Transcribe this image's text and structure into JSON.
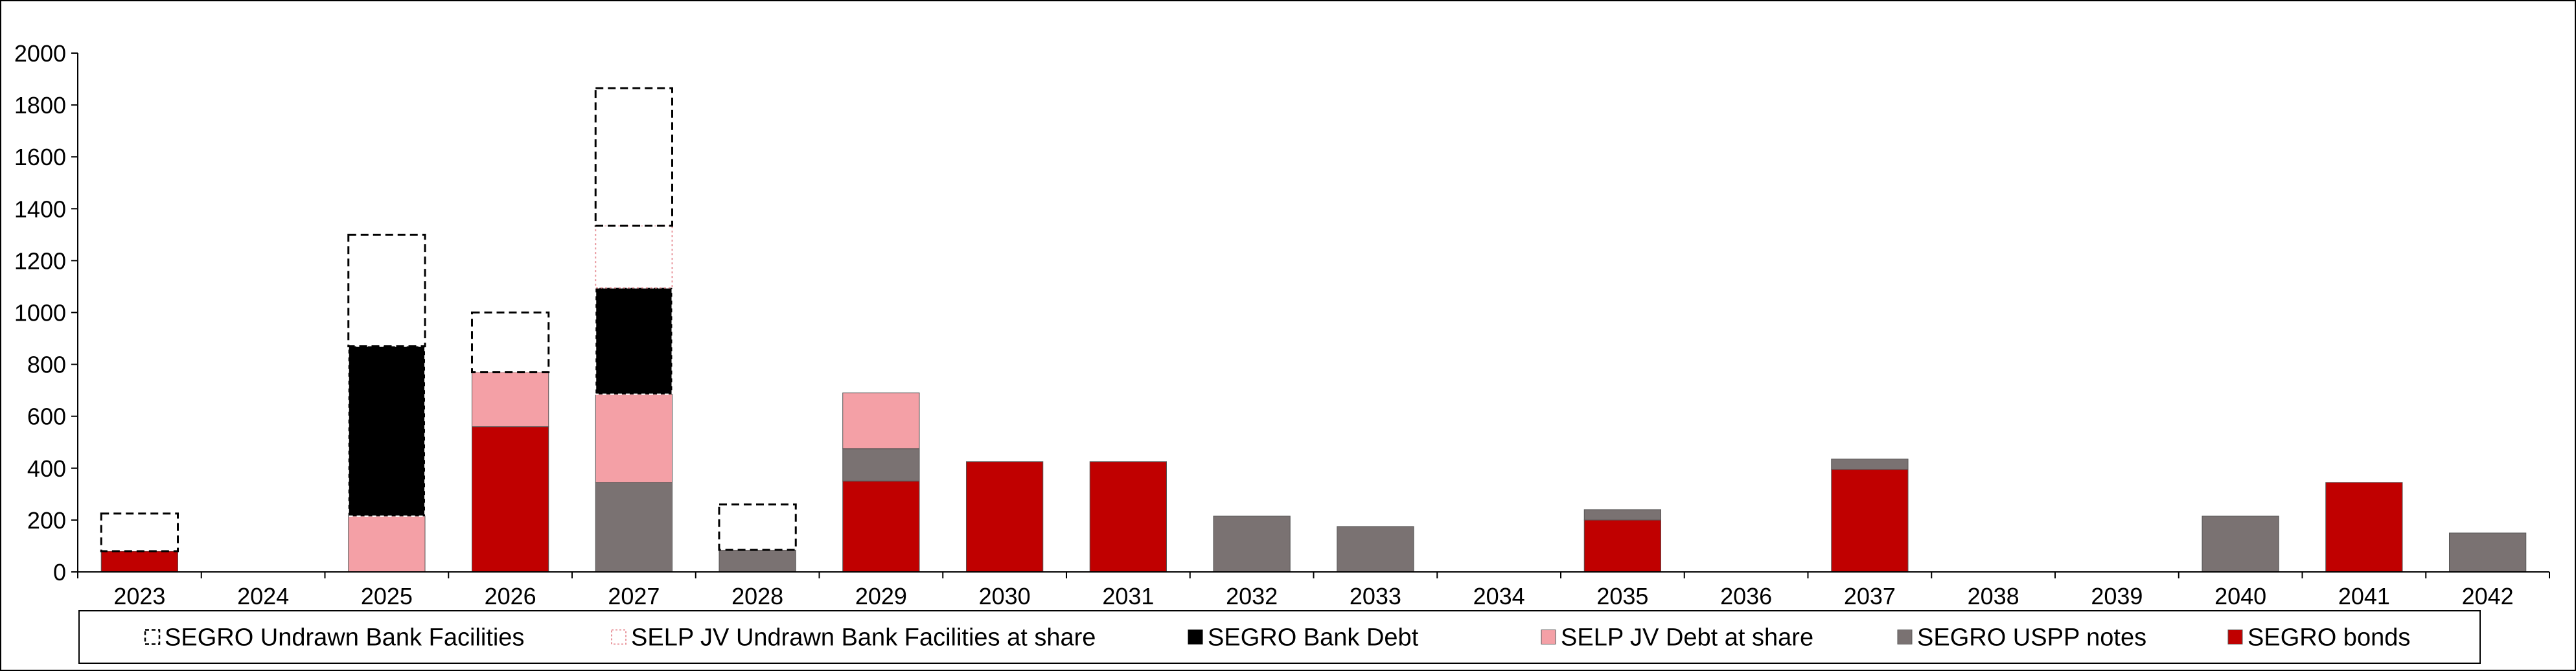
{
  "chart_data": {
    "type": "bar",
    "stacked": true,
    "categories": [
      "2023",
      "2024",
      "2025",
      "2026",
      "2027",
      "2028",
      "2029",
      "2030",
      "2031",
      "2032",
      "2033",
      "2034",
      "2035",
      "2036",
      "2037",
      "2038",
      "2039",
      "2040",
      "2041",
      "2042"
    ],
    "ylim": [
      0,
      2000
    ],
    "yticks": [
      "0",
      "200",
      "400",
      "600",
      "800",
      "1000",
      "1200",
      "1400",
      "1600",
      "1800",
      "2000"
    ],
    "grid": false,
    "legend_position": "bottom",
    "series": [
      {
        "name": "SEGRO bonds",
        "color": "#c00000",
        "style": "solid",
        "values": [
          80,
          0,
          0,
          560,
          0,
          0,
          350,
          425,
          425,
          0,
          0,
          0,
          200,
          0,
          395,
          0,
          0,
          0,
          345,
          0
        ]
      },
      {
        "name": "SEGRO USPP notes",
        "color": "#7a7272",
        "style": "solid",
        "values": [
          0,
          0,
          0,
          0,
          345,
          85,
          125,
          0,
          0,
          215,
          175,
          0,
          40,
          0,
          40,
          0,
          0,
          215,
          0,
          150
        ]
      },
      {
        "name": "SELP JV Debt at share",
        "color": "#f4a0a6",
        "style": "solid",
        "values": [
          0,
          0,
          215,
          210,
          340,
          0,
          215,
          0,
          0,
          0,
          0,
          0,
          0,
          0,
          0,
          0,
          0,
          0,
          0,
          0
        ]
      },
      {
        "name": "SEGRO Bank Debt",
        "color": "#000000",
        "style": "solid",
        "values": [
          0,
          0,
          655,
          0,
          410,
          0,
          0,
          0,
          0,
          0,
          0,
          0,
          0,
          0,
          0,
          0,
          0,
          0,
          0,
          0
        ]
      },
      {
        "name": "SELP JV Undrawn Bank Facilities at share",
        "color": "#e8969c",
        "style": "dotted",
        "values": [
          0,
          0,
          0,
          0,
          240,
          0,
          0,
          0,
          0,
          0,
          0,
          0,
          0,
          0,
          0,
          0,
          0,
          0,
          0,
          0
        ]
      },
      {
        "name": "SEGRO Undrawn Bank Facilities",
        "color": "#000000",
        "style": "dashed",
        "values": [
          145,
          0,
          430,
          230,
          530,
          175,
          0,
          0,
          0,
          0,
          0,
          0,
          0,
          0,
          0,
          0,
          0,
          0,
          0,
          0
        ]
      }
    ],
    "legend_order": [
      "SEGRO Undrawn Bank Facilities",
      "SELP JV Undrawn Bank Facilities at share",
      "SEGRO Bank Debt",
      "SELP JV Debt at share",
      "SEGRO USPP notes",
      "SEGRO bonds"
    ]
  }
}
